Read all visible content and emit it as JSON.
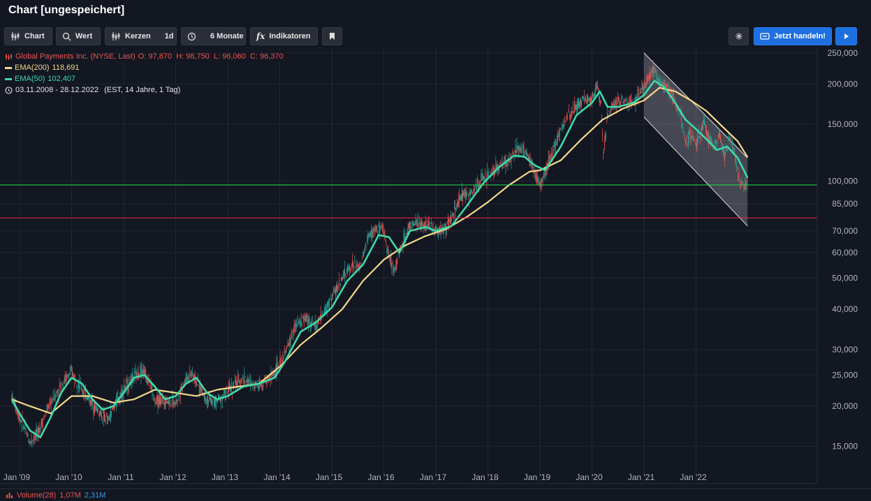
{
  "title": "Chart [ungespeichert]",
  "toolbar": {
    "chart_label": "Chart",
    "wert_label": "Wert",
    "kerzen_label": "Kerzen",
    "interval": "1d",
    "range_label": "6 Monate",
    "indicators_label": "Indikatoren",
    "trade_label": "Jetzt handeln!"
  },
  "legend": {
    "instrument": "Global Payments Inc. (NYSE, Last)",
    "ohlc": "O: 97,870  H: 98,750  L: 96,060  C: 96,370",
    "ema200_label": "EMA(200)",
    "ema200_value": "118,691",
    "ema50_label": "EMA(50)",
    "ema50_value": "102,407",
    "date_range": "03.11.2008 - 28.12.2022",
    "date_note": "(EST, 14 Jahre, 1 Tag)"
  },
  "volume": {
    "label": "Volume(28)",
    "value1": "1,07M",
    "value2": "2,31M"
  },
  "colors": {
    "background": "#131722",
    "ema200": "#f5d88a",
    "ema50": "#3ed9a8",
    "up_candle": "#26a69a",
    "down_candle": "#ef5350",
    "green_line": "#22e04d",
    "red_line": "#f0243f",
    "accent": "#1e6fe0"
  },
  "chart_data": {
    "type": "line",
    "yscale": "log",
    "ylim": [
      11500,
      260000
    ],
    "xlim": [
      2008.84,
      2023.0
    ],
    "grid": true,
    "x_ticks": [
      "Jan '09",
      "Jan '10",
      "Jan '11",
      "Jan '12",
      "Jan '13",
      "Jan '14",
      "Jan '15",
      "Jan '16",
      "Jan '17",
      "Jan '18",
      "Jan '19",
      "Jan '20",
      "Jan '21",
      "Jan '22"
    ],
    "y_ticks": [
      "250,000",
      "200,000",
      "150,000",
      "100,000",
      "85,000",
      "70,000",
      "60,000",
      "50,000",
      "40,000",
      "30,000",
      "25,000",
      "20,000",
      "15,000"
    ],
    "series": [
      {
        "name": "Global Payments Inc. (NYSE, Last)",
        "x": [
          2008.85,
          2009.0,
          2009.1,
          2009.2,
          2009.35,
          2009.5,
          2009.6,
          2009.75,
          2009.85,
          2010.0,
          2010.2,
          2010.4,
          2010.55,
          2010.7,
          2010.85,
          2011.0,
          2011.2,
          2011.35,
          2011.5,
          2011.6,
          2011.75,
          2012.0,
          2012.15,
          2012.3,
          2012.45,
          2012.6,
          2012.75,
          2012.9,
          2013.1,
          2013.3,
          2013.45,
          2013.6,
          2013.75,
          2013.9,
          2014.1,
          2014.3,
          2014.5,
          2014.7,
          2014.85,
          2015.0,
          2015.2,
          2015.4,
          2015.55,
          2015.7,
          2015.85,
          2016.0,
          2016.1,
          2016.2,
          2016.35,
          2016.5,
          2016.7,
          2016.85,
          2017.0,
          2017.2,
          2017.35,
          2017.5,
          2017.65,
          2017.8,
          2018.0,
          2018.2,
          2018.4,
          2018.6,
          2018.75,
          2018.9,
          2019.0,
          2019.1,
          2019.25,
          2019.4,
          2019.55,
          2019.7,
          2019.85,
          2020.0,
          2020.1,
          2020.18,
          2020.22,
          2020.3,
          2020.4,
          2020.55,
          2020.7,
          2020.85,
          2021.0,
          2021.1,
          2021.2,
          2021.3,
          2021.4,
          2021.5,
          2021.6,
          2021.7,
          2021.8,
          2021.9,
          2022.0,
          2022.15,
          2022.25,
          2022.35,
          2022.45,
          2022.55,
          2022.65,
          2022.75,
          2022.85,
          2022.99
        ],
        "y": [
          21500,
          18500,
          17000,
          15500,
          16500,
          19000,
          20500,
          22500,
          24000,
          25500,
          22500,
          20500,
          19000,
          18000,
          20500,
          22500,
          24500,
          26000,
          24000,
          20500,
          21000,
          20500,
          23500,
          25500,
          23000,
          21000,
          20500,
          21500,
          23000,
          24500,
          23500,
          23500,
          24000,
          25500,
          29000,
          35500,
          37500,
          35500,
          39000,
          43500,
          50000,
          55000,
          54000,
          67000,
          71000,
          70000,
          58500,
          53000,
          64000,
          73000,
          73500,
          73000,
          70000,
          71500,
          80000,
          90500,
          90000,
          98500,
          104000,
          111000,
          115000,
          128000,
          122000,
          107000,
          96000,
          107000,
          125000,
          145000,
          160000,
          171000,
          180000,
          181500,
          199000,
          172000,
          120000,
          160000,
          172000,
          178000,
          172000,
          180000,
          195000,
          210000,
          222000,
          205000,
          200000,
          190000,
          175000,
          160000,
          131000,
          140000,
          132000,
          150000,
          135000,
          128000,
          140000,
          120000,
          138000,
          120000,
          98000,
          96370
        ]
      },
      {
        "name": "EMA(200)",
        "x": [
          2008.85,
          2009.2,
          2009.6,
          2010.0,
          2010.4,
          2010.8,
          2011.2,
          2011.6,
          2012.0,
          2012.4,
          2012.8,
          2013.2,
          2013.6,
          2014.0,
          2014.4,
          2014.8,
          2015.2,
          2015.6,
          2016.0,
          2016.4,
          2016.8,
          2017.2,
          2017.6,
          2018.0,
          2018.4,
          2018.8,
          2019.0,
          2019.4,
          2019.8,
          2020.2,
          2020.6,
          2021.0,
          2021.3,
          2021.6,
          2021.9,
          2022.2,
          2022.5,
          2022.8,
          2022.99
        ],
        "y": [
          21000,
          20000,
          19000,
          21500,
          21500,
          20500,
          21000,
          22500,
          22000,
          21500,
          22500,
          23000,
          23500,
          26500,
          31000,
          35000,
          40000,
          49000,
          57000,
          63000,
          67500,
          71000,
          77500,
          86000,
          97000,
          107000,
          108000,
          116000,
          135000,
          155000,
          168000,
          178000,
          195000,
          190000,
          178000,
          165000,
          148000,
          133000,
          118691
        ]
      },
      {
        "name": "EMA(50)",
        "x": [
          2008.85,
          2009.0,
          2009.2,
          2009.4,
          2009.6,
          2009.8,
          2010.0,
          2010.2,
          2010.4,
          2010.6,
          2010.8,
          2011.0,
          2011.2,
          2011.4,
          2011.6,
          2011.8,
          2012.0,
          2012.2,
          2012.4,
          2012.6,
          2012.8,
          2013.0,
          2013.3,
          2013.6,
          2013.9,
          2014.1,
          2014.4,
          2014.7,
          2015.0,
          2015.3,
          2015.6,
          2015.9,
          2016.1,
          2016.3,
          2016.5,
          2016.8,
          2017.0,
          2017.3,
          2017.6,
          2017.9,
          2018.2,
          2018.5,
          2018.7,
          2018.9,
          2019.1,
          2019.4,
          2019.7,
          2020.0,
          2020.15,
          2020.3,
          2020.5,
          2020.8,
          2021.0,
          2021.2,
          2021.4,
          2021.6,
          2021.8,
          2022.0,
          2022.2,
          2022.4,
          2022.6,
          2022.8,
          2022.99
        ],
        "y": [
          21000,
          19000,
          16800,
          16000,
          18500,
          22000,
          24500,
          23500,
          21000,
          19500,
          20000,
          22000,
          24500,
          25000,
          23000,
          21000,
          21500,
          23500,
          24500,
          22000,
          21000,
          21500,
          23000,
          23500,
          24500,
          27500,
          34000,
          36500,
          40500,
          49000,
          55000,
          68000,
          67000,
          60000,
          70000,
          72000,
          70000,
          72500,
          84000,
          98000,
          110000,
          120000,
          119000,
          112000,
          108000,
          128000,
          160000,
          175000,
          190000,
          170000,
          170000,
          175000,
          185000,
          205000,
          195000,
          175000,
          155000,
          145000,
          135000,
          125000,
          128000,
          118000,
          102407
        ]
      }
    ],
    "horizontal_lines": [
      {
        "label": "97,270",
        "value": 97270,
        "color": "#22e04d"
      },
      {
        "label": "76,861",
        "value": 76861,
        "color": "#f0243f"
      }
    ],
    "price_label_hidden": "100,000"
  }
}
